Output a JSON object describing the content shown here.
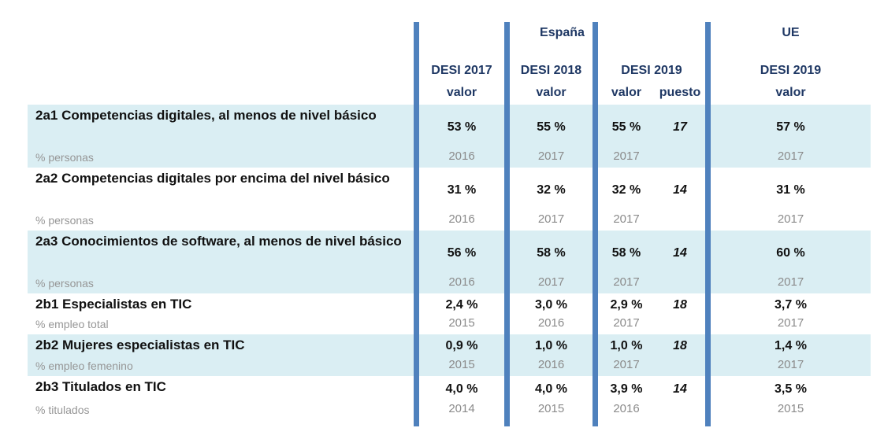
{
  "header": {
    "spain_group_label": "España",
    "eu_group_label": "UE",
    "columns": [
      {
        "name": "DESI 2017",
        "sub": "valor"
      },
      {
        "name": "DESI 2018",
        "sub": "valor"
      },
      {
        "name": "DESI 2019",
        "sub_valor": "valor",
        "sub_puesto": "puesto"
      },
      {
        "name": "DESI 2019",
        "sub": "valor"
      }
    ]
  },
  "rows": [
    {
      "label": "2a1 Competencias digitales, al menos de nivel básico",
      "sublabel": "% personas",
      "desi2017": {
        "value": "53 %",
        "year": "2016"
      },
      "desi2018": {
        "value": "55 %",
        "year": "2017"
      },
      "desi2019": {
        "value": "55 %",
        "year": "2017",
        "rank": "17"
      },
      "ue_desi2019": {
        "value": "57 %",
        "year": "2017"
      }
    },
    {
      "label": "2a2 Competencias digitales por encima del nivel básico",
      "sublabel": "% personas",
      "desi2017": {
        "value": "31 %",
        "year": "2016"
      },
      "desi2018": {
        "value": "32 %",
        "year": "2017"
      },
      "desi2019": {
        "value": "32 %",
        "year": "2017",
        "rank": "14"
      },
      "ue_desi2019": {
        "value": "31 %",
        "year": "2017"
      }
    },
    {
      "label": "2a3 Conocimientos de software, al menos de nivel básico",
      "sublabel": "% personas",
      "desi2017": {
        "value": "56 %",
        "year": "2016"
      },
      "desi2018": {
        "value": "58 %",
        "year": "2017"
      },
      "desi2019": {
        "value": "58 %",
        "year": "2017",
        "rank": "14"
      },
      "ue_desi2019": {
        "value": "60 %",
        "year": "2017"
      }
    },
    {
      "label": "2b1 Especialistas en TIC",
      "sublabel": "% empleo total",
      "desi2017": {
        "value": "2,4 %",
        "year": "2015"
      },
      "desi2018": {
        "value": "3,0 %",
        "year": "2016"
      },
      "desi2019": {
        "value": "2,9 %",
        "year": "2017",
        "rank": "18"
      },
      "ue_desi2019": {
        "value": "3,7 %",
        "year": "2017"
      }
    },
    {
      "label": "2b2 Mujeres especialistas en TIC",
      "sublabel": "% empleo femenino",
      "desi2017": {
        "value": "0,9 %",
        "year": "2015"
      },
      "desi2018": {
        "value": "1,0 %",
        "year": "2016"
      },
      "desi2019": {
        "value": "1,0 %",
        "year": "2017",
        "rank": "18"
      },
      "ue_desi2019": {
        "value": "1,4 %",
        "year": "2017"
      }
    },
    {
      "label": "2b3 Titulados en TIC",
      "sublabel": "% titulados",
      "desi2017": {
        "value": "4,0 %",
        "year": "2014"
      },
      "desi2018": {
        "value": "4,0 %",
        "year": "2015"
      },
      "desi2019": {
        "value": "3,9 %",
        "year": "2016",
        "rank": "14"
      },
      "ue_desi2019": {
        "value": "3,5 %",
        "year": "2015"
      }
    }
  ],
  "colors": {
    "separator_blue": "#4F81BD",
    "row_shade_blue": "#DAEEF3",
    "header_navy": "#1F3864",
    "muted_gray": "#8B8B8B"
  }
}
